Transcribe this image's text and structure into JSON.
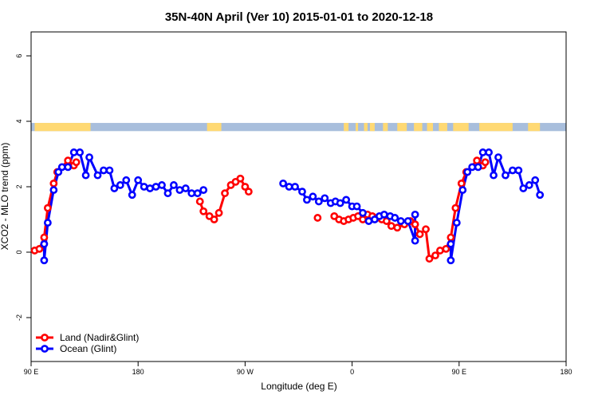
{
  "chart_data": {
    "type": "line",
    "title": "35N-40N April (Ver 10)   2015-01-01 to 2020-12-18",
    "xlabel": "Longitude (deg E)",
    "ylabel": "XCO2 - MLO trend (ppm)",
    "xlim": [
      90,
      450
    ],
    "ylim": [
      -3.3,
      6.6
    ],
    "x_ticks": [
      {
        "value": 90,
        "label": "90 E"
      },
      {
        "value": 180,
        "label": "180"
      },
      {
        "value": 270,
        "label": "90 W"
      },
      {
        "value": 360,
        "label": "0"
      },
      {
        "value": 450,
        "label": "90 E"
      },
      {
        "value": 540,
        "label": "180"
      }
    ],
    "y_ticks": [
      {
        "value": -2,
        "label": "-2"
      },
      {
        "value": 0,
        "label": "0"
      },
      {
        "value": 2,
        "label": "2"
      },
      {
        "value": 4,
        "label": "4"
      },
      {
        "value": 6,
        "label": "6"
      }
    ],
    "grid": false,
    "legend_position": "bottom-left",
    "land_ocean_strip": {
      "y_range": [
        3.7,
        3.95
      ],
      "land_color": "#FFD973",
      "ocean_color": "#A8BEDC",
      "land_segments": [
        [
          93,
          140
        ],
        [
          238,
          250
        ],
        [
          353,
          357
        ],
        [
          363,
          365
        ],
        [
          370,
          373
        ],
        [
          375,
          379
        ],
        [
          386,
          390
        ],
        [
          398,
          406
        ],
        [
          412,
          419
        ],
        [
          423,
          428
        ],
        [
          433,
          440
        ],
        [
          445,
          458
        ],
        [
          467,
          495
        ],
        [
          508,
          518
        ]
      ]
    },
    "series": [
      {
        "name": "Land (Nadir&Glint)",
        "color": "#FF0000",
        "points": [
          [
            93,
            0.05
          ],
          [
            97,
            0.1
          ],
          [
            101,
            0.45
          ],
          [
            104,
            1.35
          ],
          [
            109,
            2.1
          ],
          [
            112,
            2.45
          ],
          [
            121,
            2.8
          ],
          [
            126,
            2.65
          ],
          [
            128,
            2.75
          ],
          [
            232,
            1.55
          ],
          [
            235,
            1.25
          ],
          [
            240,
            1.1
          ],
          [
            244,
            1.0
          ],
          [
            248,
            1.2
          ],
          [
            253,
            1.8
          ],
          [
            258,
            2.05
          ],
          [
            262,
            2.15
          ],
          [
            266,
            2.25
          ],
          [
            270,
            2.0
          ],
          [
            273,
            1.85
          ],
          [
            345,
            1.1
          ],
          [
            349,
            1.0
          ],
          [
            353,
            0.95
          ],
          [
            357,
            1.0
          ],
          [
            361,
            1.05
          ],
          [
            365,
            1.1
          ],
          [
            369,
            1.0
          ],
          [
            373,
            1.15
          ],
          [
            377,
            1.1
          ],
          [
            381,
            1.05
          ],
          [
            385,
            1.0
          ],
          [
            389,
            0.95
          ],
          [
            393,
            0.8
          ],
          [
            398,
            0.75
          ],
          [
            404,
            0.85
          ],
          [
            409,
            0.95
          ],
          [
            413,
            0.85
          ],
          [
            417,
            0.55
          ],
          [
            422,
            0.7
          ],
          [
            425,
            -0.2
          ],
          [
            430,
            -0.1
          ],
          [
            434,
            0.05
          ],
          [
            439,
            0.1
          ],
          [
            443,
            0.45
          ],
          [
            447,
            1.35
          ],
          [
            452,
            2.1
          ],
          [
            456,
            2.45
          ],
          [
            465,
            2.8
          ],
          [
            470,
            2.65
          ],
          [
            472,
            2.75
          ]
        ],
        "isolated_points": [
          [
            331,
            1.05
          ]
        ]
      },
      {
        "name": "Ocean (Glint)",
        "color": "#0000FF",
        "points": [
          [
            101,
            0.25
          ],
          [
            101,
            -0.25
          ],
          [
            104,
            0.9
          ],
          [
            109,
            1.9
          ],
          [
            113,
            2.45
          ],
          [
            116,
            2.6
          ],
          [
            121,
            2.6
          ],
          [
            126,
            3.05
          ],
          [
            131,
            3.05
          ],
          [
            136,
            2.35
          ],
          [
            139,
            2.9
          ],
          [
            146,
            2.35
          ],
          [
            151,
            2.5
          ],
          [
            156,
            2.5
          ],
          [
            160,
            1.95
          ],
          [
            165,
            2.05
          ],
          [
            170,
            2.2
          ],
          [
            175,
            1.75
          ],
          [
            180,
            2.2
          ],
          [
            185,
            2.0
          ],
          [
            190,
            1.95
          ],
          [
            195,
            2.0
          ],
          [
            200,
            2.05
          ],
          [
            205,
            1.8
          ],
          [
            210,
            2.05
          ],
          [
            215,
            1.9
          ],
          [
            220,
            1.95
          ],
          [
            225,
            1.8
          ],
          [
            230,
            1.8
          ],
          [
            235,
            1.9
          ]
        ],
        "segment_2": [
          [
            302,
            2.1
          ],
          [
            307,
            2.0
          ],
          [
            312,
            2.0
          ],
          [
            318,
            1.85
          ],
          [
            322,
            1.6
          ],
          [
            327,
            1.7
          ],
          [
            332,
            1.55
          ],
          [
            337,
            1.65
          ],
          [
            342,
            1.5
          ],
          [
            346,
            1.55
          ],
          [
            350,
            1.5
          ],
          [
            355,
            1.6
          ],
          [
            360,
            1.4
          ],
          [
            364,
            1.4
          ],
          [
            369,
            1.2
          ],
          [
            374,
            0.95
          ],
          [
            379,
            1.0
          ],
          [
            383,
            1.1
          ],
          [
            387,
            1.15
          ],
          [
            392,
            1.1
          ],
          [
            396,
            1.05
          ],
          [
            401,
            0.95
          ],
          [
            407,
            0.95
          ],
          [
            413,
            0.35
          ],
          [
            413,
            1.15
          ],
          [
            443,
            0.25
          ],
          [
            443,
            -0.25
          ],
          [
            448,
            0.9
          ],
          [
            453,
            1.9
          ],
          [
            457,
            2.45
          ],
          [
            461,
            2.6
          ],
          [
            466,
            2.6
          ],
          [
            470,
            3.05
          ],
          [
            475,
            3.05
          ],
          [
            479,
            2.35
          ],
          [
            483,
            2.9
          ],
          [
            489,
            2.35
          ],
          [
            495,
            2.5
          ],
          [
            500,
            2.5
          ],
          [
            504,
            1.95
          ],
          [
            509,
            2.05
          ],
          [
            514,
            2.2
          ],
          [
            518,
            1.75
          ]
        ]
      }
    ]
  }
}
